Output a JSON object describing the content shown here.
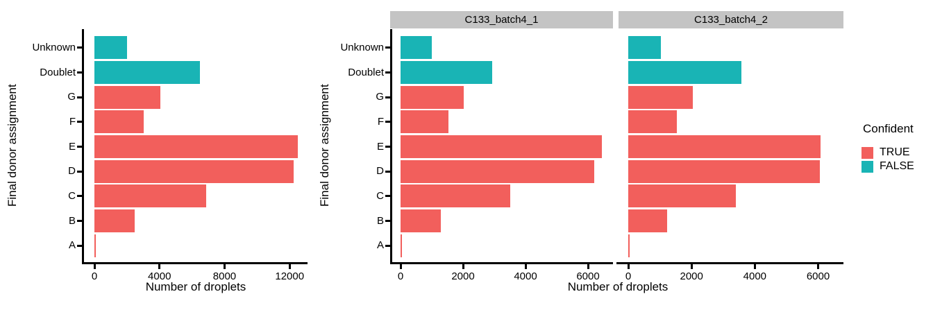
{
  "figure": {
    "left_chart": {
      "xlabel": "Number of droplets",
      "ylabel": "Final donor assignment"
    },
    "facet_chart": {
      "xlabel": "Number of droplets",
      "ylabel": "Final donor assignment",
      "facets": [
        "C133_batch4_1",
        "C133_batch4_2"
      ]
    }
  },
  "legend": {
    "title": "Confident",
    "items": [
      {
        "label": "TRUE",
        "color": "#F25F5C"
      },
      {
        "label": "FALSE",
        "color": "#19B4B5"
      }
    ]
  },
  "colors": {
    "confident_true": "#F25F5C",
    "confident_false": "#19B4B5",
    "strip_background": "#C4C4C4",
    "axis": "#000000"
  },
  "chart_data": [
    {
      "type": "bar",
      "orientation": "horizontal",
      "panel": "overall",
      "title": "",
      "xlabel": "Number of droplets",
      "ylabel": "Final donor assignment",
      "categories": [
        "Unknown",
        "Doublet",
        "G",
        "F",
        "E",
        "D",
        "C",
        "B",
        "A"
      ],
      "series": [
        {
          "name": "Number of droplets",
          "values": [
            2000,
            6500,
            4050,
            3050,
            12520,
            12230,
            6890,
            2460,
            80
          ]
        }
      ],
      "confident": [
        "FALSE",
        "FALSE",
        "TRUE",
        "TRUE",
        "TRUE",
        "TRUE",
        "TRUE",
        "TRUE",
        "TRUE"
      ],
      "x_ticks": [
        0,
        4000,
        8000,
        12000
      ],
      "xlim": [
        0,
        13100
      ],
      "grid": false,
      "legend_position": "right"
    },
    {
      "type": "bar",
      "orientation": "horizontal",
      "panel": "C133_batch4_1",
      "title": "C133_batch4_1",
      "xlabel": "Number of droplets",
      "ylabel": "Final donor assignment",
      "categories": [
        "Unknown",
        "Doublet",
        "G",
        "F",
        "E",
        "D",
        "C",
        "B",
        "A"
      ],
      "series": [
        {
          "name": "Number of droplets",
          "values": [
            990,
            2930,
            2030,
            1540,
            6450,
            6190,
            3520,
            1280,
            50
          ]
        }
      ],
      "confident": [
        "FALSE",
        "FALSE",
        "TRUE",
        "TRUE",
        "TRUE",
        "TRUE",
        "TRUE",
        "TRUE",
        "TRUE"
      ],
      "x_ticks": [
        0,
        2000,
        4000,
        6000
      ],
      "xlim": [
        0,
        6800
      ],
      "grid": false,
      "legend_position": "right"
    },
    {
      "type": "bar",
      "orientation": "horizontal",
      "panel": "C133_batch4_2",
      "title": "C133_batch4_2",
      "xlabel": "Number of droplets",
      "ylabel": "Final donor assignment",
      "categories": [
        "Unknown",
        "Doublet",
        "G",
        "F",
        "E",
        "D",
        "C",
        "B",
        "A"
      ],
      "series": [
        {
          "name": "Number of droplets",
          "values": [
            1030,
            3570,
            2040,
            1530,
            6080,
            6050,
            3410,
            1230,
            50
          ]
        }
      ],
      "confident": [
        "FALSE",
        "FALSE",
        "TRUE",
        "TRUE",
        "TRUE",
        "TRUE",
        "TRUE",
        "TRUE",
        "TRUE"
      ],
      "x_ticks": [
        0,
        2000,
        4000,
        6000
      ],
      "xlim": [
        0,
        6800
      ],
      "grid": false,
      "legend_position": "right"
    }
  ]
}
